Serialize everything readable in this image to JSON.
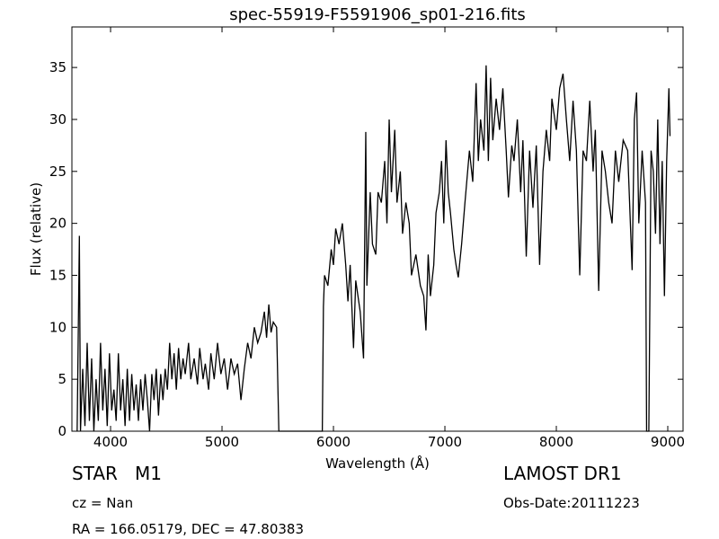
{
  "chart_data": {
    "type": "line",
    "title": "spec-55919-F5591906_sp01-216.fits",
    "xlabel": "Wavelength (Å)",
    "ylabel": "Flux (relative)",
    "annotations": [
      "STAR   M1",
      "cz = Nan",
      "RA = 166.05179, DEC = 47.80383",
      "LAMOST DR1",
      "Obs-Date:20111223"
    ],
    "xlim": [
      3653,
      9137
    ],
    "ylim": [
      0,
      38.9
    ],
    "xticks": [
      4000,
      5000,
      6000,
      7000,
      8000,
      9000
    ],
    "yticks": [
      0,
      5,
      10,
      15,
      20,
      25,
      30,
      35
    ],
    "x": [
      3700,
      3720,
      3730,
      3750,
      3770,
      3790,
      3810,
      3830,
      3850,
      3870,
      3890,
      3910,
      3930,
      3950,
      3970,
      3990,
      4010,
      4030,
      4050,
      4070,
      4090,
      4110,
      4130,
      4150,
      4170,
      4190,
      4210,
      4230,
      4250,
      4270,
      4290,
      4310,
      4330,
      4350,
      4370,
      4390,
      4410,
      4430,
      4450,
      4470,
      4490,
      4510,
      4530,
      4550,
      4570,
      4590,
      4610,
      4630,
      4650,
      4670,
      4700,
      4720,
      4750,
      4780,
      4800,
      4830,
      4850,
      4880,
      4900,
      4930,
      4960,
      4990,
      5020,
      5050,
      5080,
      5110,
      5140,
      5170,
      5200,
      5230,
      5260,
      5290,
      5320,
      5350,
      5380,
      5400,
      5420,
      5440,
      5460,
      5490,
      5510,
      5900,
      5910,
      5920,
      5950,
      5980,
      6000,
      6020,
      6050,
      6080,
      6110,
      6130,
      6150,
      6180,
      6200,
      6240,
      6270,
      6290,
      6300,
      6330,
      6350,
      6380,
      6400,
      6430,
      6460,
      6480,
      6500,
      6520,
      6550,
      6570,
      6600,
      6620,
      6650,
      6680,
      6700,
      6740,
      6780,
      6810,
      6830,
      6850,
      6870,
      6900,
      6920,
      6950,
      6970,
      6990,
      7010,
      7030,
      7050,
      7080,
      7100,
      7120,
      7150,
      7180,
      7220,
      7250,
      7280,
      7300,
      7320,
      7350,
      7370,
      7390,
      7410,
      7430,
      7460,
      7490,
      7520,
      7550,
      7570,
      7600,
      7620,
      7650,
      7680,
      7700,
      7730,
      7760,
      7790,
      7820,
      7850,
      7880,
      7910,
      7940,
      7960,
      8000,
      8030,
      8060,
      8090,
      8120,
      8150,
      8180,
      8210,
      8240,
      8270,
      8300,
      8330,
      8350,
      8380,
      8410,
      8440,
      8470,
      8500,
      8530,
      8560,
      8600,
      8640,
      8680,
      8700,
      8720,
      8740,
      8770,
      8800,
      8810,
      8830,
      8850,
      8870,
      8890,
      8910,
      8930,
      8950,
      8970,
      8990,
      9010,
      9020
    ],
    "values": [
      0,
      18.8,
      0,
      6,
      0.5,
      8.5,
      1,
      7,
      0,
      5,
      1,
      8.5,
      2,
      6,
      0.5,
      7.5,
      2,
      4,
      1,
      7.5,
      2,
      5,
      0.5,
      6,
      1,
      5.5,
      2,
      4.5,
      1,
      5,
      2,
      5.5,
      3,
      0,
      5.5,
      3,
      6,
      1.5,
      5.5,
      3,
      6,
      4,
      8.5,
      5,
      7.5,
      4,
      8,
      5,
      7,
      5.5,
      8.5,
      5,
      7,
      4.5,
      8,
      5,
      6.5,
      4,
      7.5,
      5,
      8.5,
      5.5,
      7,
      4,
      7,
      5.5,
      6.5,
      3,
      6,
      8.5,
      7,
      10,
      8.5,
      9.5,
      11.5,
      9,
      12.2,
      9.5,
      10.5,
      10,
      0,
      0,
      12,
      15,
      14,
      17.5,
      16,
      19.5,
      18,
      20,
      16,
      12.5,
      16,
      8,
      14.5,
      11.5,
      7,
      28.8,
      14,
      23,
      18,
      17,
      23,
      22,
      26,
      20,
      30,
      23,
      29,
      22,
      25,
      19,
      22,
      20,
      15,
      17,
      14,
      13,
      9.7,
      17,
      13,
      16,
      21,
      23,
      26,
      20,
      28,
      23,
      21,
      17.5,
      16,
      14.8,
      18,
      22,
      27,
      24,
      33.5,
      26,
      30,
      27,
      35.2,
      26,
      34,
      28,
      32,
      29,
      33,
      27,
      22.5,
      27.5,
      26,
      30,
      23,
      28,
      16.8,
      27,
      21.5,
      27.5,
      16,
      25,
      29,
      26,
      32,
      29,
      33,
      34.4,
      30,
      26,
      31.8,
      27,
      15,
      27,
      26,
      31.8,
      25,
      29,
      13.5,
      27,
      25,
      22,
      20,
      27,
      24,
      28,
      27,
      15.5,
      30,
      32.6,
      20,
      27,
      22,
      0,
      0,
      27,
      25,
      19,
      30,
      18,
      26,
      13,
      26,
      33,
      28.4
    ],
    "color": "#000000",
    "grid": false
  }
}
